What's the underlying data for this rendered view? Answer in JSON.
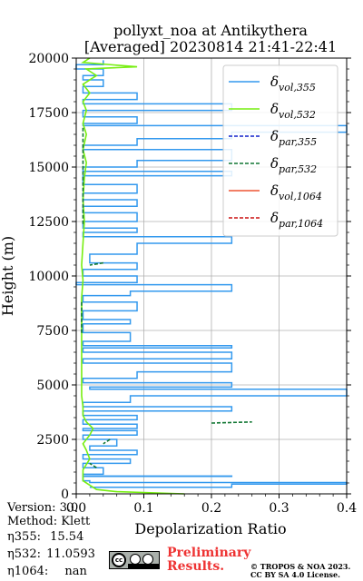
{
  "chart_data": {
    "type": "line",
    "title_line1": "pollyxt_noa at Antikythera",
    "title_line2": "[Averaged] 20230814 21:41-22:41",
    "xlabel": "Depolarization Ratio",
    "ylabel": "Height (m)",
    "xlim": [
      0,
      0.4
    ],
    "ylim": [
      0,
      20000
    ],
    "xticks": [
      "0.0",
      "0.1",
      "0.2",
      "0.3",
      "0.4"
    ],
    "xtick_values": [
      0,
      0.1,
      0.2,
      0.3,
      0.4
    ],
    "yticks": [
      "0",
      "2500",
      "5000",
      "7500",
      "10000",
      "12500",
      "15000",
      "17500",
      "20000"
    ],
    "ytick_values": [
      0,
      2500,
      5000,
      7500,
      10000,
      12500,
      15000,
      17500,
      20000
    ],
    "grid": true,
    "legend_position": "top-right",
    "series": [
      {
        "name": "δvol,355",
        "sym": "δ",
        "sub": "vol,355",
        "color": "#3399ee",
        "dash": "solid",
        "points": [
          [
            0.02,
            300
          ],
          [
            0.23,
            450
          ],
          [
            0.4,
            520
          ],
          [
            0.02,
            600
          ],
          [
            0.01,
            800
          ],
          [
            0.23,
            820
          ],
          [
            0.01,
            900
          ],
          [
            0.04,
            1200
          ],
          [
            0.01,
            1400
          ],
          [
            0.08,
            1600
          ],
          [
            0.01,
            1800
          ],
          [
            0.09,
            2000
          ],
          [
            0.02,
            2200
          ],
          [
            0.06,
            2500
          ],
          [
            0.01,
            2700
          ],
          [
            0.09,
            2900
          ],
          [
            0.01,
            3000
          ],
          [
            0.09,
            3200
          ],
          [
            0.01,
            3400
          ],
          [
            0.09,
            3600
          ],
          [
            0.01,
            3800
          ],
          [
            0.23,
            4000
          ],
          [
            0.01,
            4200
          ],
          [
            0.08,
            4500
          ],
          [
            0.4,
            4800
          ],
          [
            0.02,
            4900
          ],
          [
            0.23,
            5100
          ],
          [
            0.01,
            5300
          ],
          [
            0.09,
            5600
          ],
          [
            0.23,
            6000
          ],
          [
            0.01,
            6200
          ],
          [
            0.23,
            6500
          ],
          [
            0.01,
            6700
          ],
          [
            0.23,
            6800
          ],
          [
            0.01,
            7000
          ],
          [
            0.08,
            7400
          ],
          [
            0.01,
            7800
          ],
          [
            0.08,
            8000
          ],
          [
            0.01,
            8400
          ],
          [
            0.09,
            8800
          ],
          [
            0.01,
            9100
          ],
          [
            0.08,
            9300
          ],
          [
            0.23,
            9600
          ],
          [
            0.0,
            9700
          ],
          [
            0.09,
            10000
          ],
          [
            0.01,
            10300
          ],
          [
            0.09,
            10600
          ],
          [
            0.02,
            11000
          ],
          [
            0.09,
            11500
          ],
          [
            0.23,
            11800
          ],
          [
            0.01,
            12000
          ],
          [
            0.09,
            12200
          ],
          [
            0.01,
            12500
          ],
          [
            0.09,
            12900
          ],
          [
            0.01,
            13200
          ],
          [
            0.09,
            13500
          ],
          [
            0.01,
            13800
          ],
          [
            0.09,
            14200
          ],
          [
            0.01,
            14600
          ],
          [
            0.23,
            14800
          ],
          [
            0.01,
            15000
          ],
          [
            0.09,
            15300
          ],
          [
            0.23,
            15800
          ],
          [
            0.01,
            16000
          ],
          [
            0.09,
            16300
          ],
          [
            0.23,
            16600
          ],
          [
            0.4,
            16900
          ],
          [
            0.01,
            17000
          ],
          [
            0.09,
            17300
          ],
          [
            0.01,
            17600
          ],
          [
            0.23,
            17900
          ],
          [
            0.01,
            18100
          ],
          [
            0.09,
            18400
          ],
          [
            0.01,
            18700
          ],
          [
            0.04,
            19000
          ],
          [
            0.01,
            19200
          ],
          [
            0.04,
            19500
          ],
          [
            0.0,
            19700
          ],
          [
            0.04,
            19900
          ]
        ]
      },
      {
        "name": "δvol,532",
        "sym": "δ",
        "sub": "vol,532",
        "color": "#77ee11",
        "dash": "solid",
        "points": [
          [
            0.16,
            0
          ],
          [
            0.06,
            100
          ],
          [
            0.03,
            200
          ],
          [
            0.02,
            400
          ],
          [
            0.01,
            600
          ],
          [
            0.01,
            800
          ],
          [
            0.01,
            1100
          ],
          [
            0.02,
            1600
          ],
          [
            0.015,
            2000
          ],
          [
            0.01,
            2300
          ],
          [
            0.02,
            2700
          ],
          [
            0.025,
            3000
          ],
          [
            0.015,
            3300
          ],
          [
            0.01,
            3600
          ],
          [
            0.01,
            4000
          ],
          [
            0.008,
            4500
          ],
          [
            0.008,
            5000
          ],
          [
            0.008,
            6000
          ],
          [
            0.008,
            7000
          ],
          [
            0.008,
            8000
          ],
          [
            0.008,
            9000
          ],
          [
            0.01,
            9800
          ],
          [
            0.008,
            10500
          ],
          [
            0.01,
            11500
          ],
          [
            0.012,
            12500
          ],
          [
            0.01,
            13500
          ],
          [
            0.012,
            14500
          ],
          [
            0.015,
            15200
          ],
          [
            0.01,
            15800
          ],
          [
            0.015,
            16500
          ],
          [
            0.01,
            17000
          ],
          [
            0.015,
            17600
          ],
          [
            0.01,
            18000
          ],
          [
            0.02,
            18400
          ],
          [
            0.01,
            18800
          ],
          [
            0.03,
            19200
          ],
          [
            0.015,
            19500
          ],
          [
            0.09,
            19600
          ],
          [
            0.01,
            19800
          ],
          [
            0.02,
            20000
          ]
        ]
      },
      {
        "name": "δpar,355",
        "sym": "δ",
        "sub": "par,355",
        "color": "#1122cc",
        "dash": "dash",
        "points": []
      },
      {
        "name": "δpar,532",
        "sym": "δ",
        "sub": "par,532",
        "color": "#117733",
        "dash": "dash",
        "points": [
          [
            0.2,
            3250
          ],
          [
            0.26,
            3300
          ],
          [
            0.05,
            2500
          ],
          [
            0.04,
            2300
          ],
          [
            0.03,
            1200
          ],
          [
            0.02,
            1400
          ],
          [
            0.04,
            10600
          ],
          [
            0.02,
            10500
          ],
          [
            0.008,
            8800
          ],
          [
            0.008,
            7300
          ],
          [
            0.01,
            16800
          ],
          [
            0.01,
            12300
          ]
        ]
      },
      {
        "name": "δvol,1064",
        "sym": "δ",
        "sub": "vol,1064",
        "color": "#ee5533",
        "dash": "solid",
        "points": []
      },
      {
        "name": "δpar,1064",
        "sym": "δ",
        "sub": "par,1064",
        "color": "#cc1111",
        "dash": "dash",
        "points": []
      }
    ]
  },
  "info": {
    "version": "Version: 3.0",
    "method": "Method: Klett",
    "eta355_label": "η355:",
    "eta355_value": "15.54",
    "eta532_label": "η532:",
    "eta532_value": "11.0593",
    "eta1064_label": "η1064:",
    "eta1064_value": "nan"
  },
  "footer": {
    "preliminary_line1": "Preliminary",
    "preliminary_line2": "Results.",
    "license_line1": "© TROPOS & NOA 2023.",
    "license_line2": "CC BY SA 4.0 License.",
    "cc_badge_text": "cc"
  }
}
